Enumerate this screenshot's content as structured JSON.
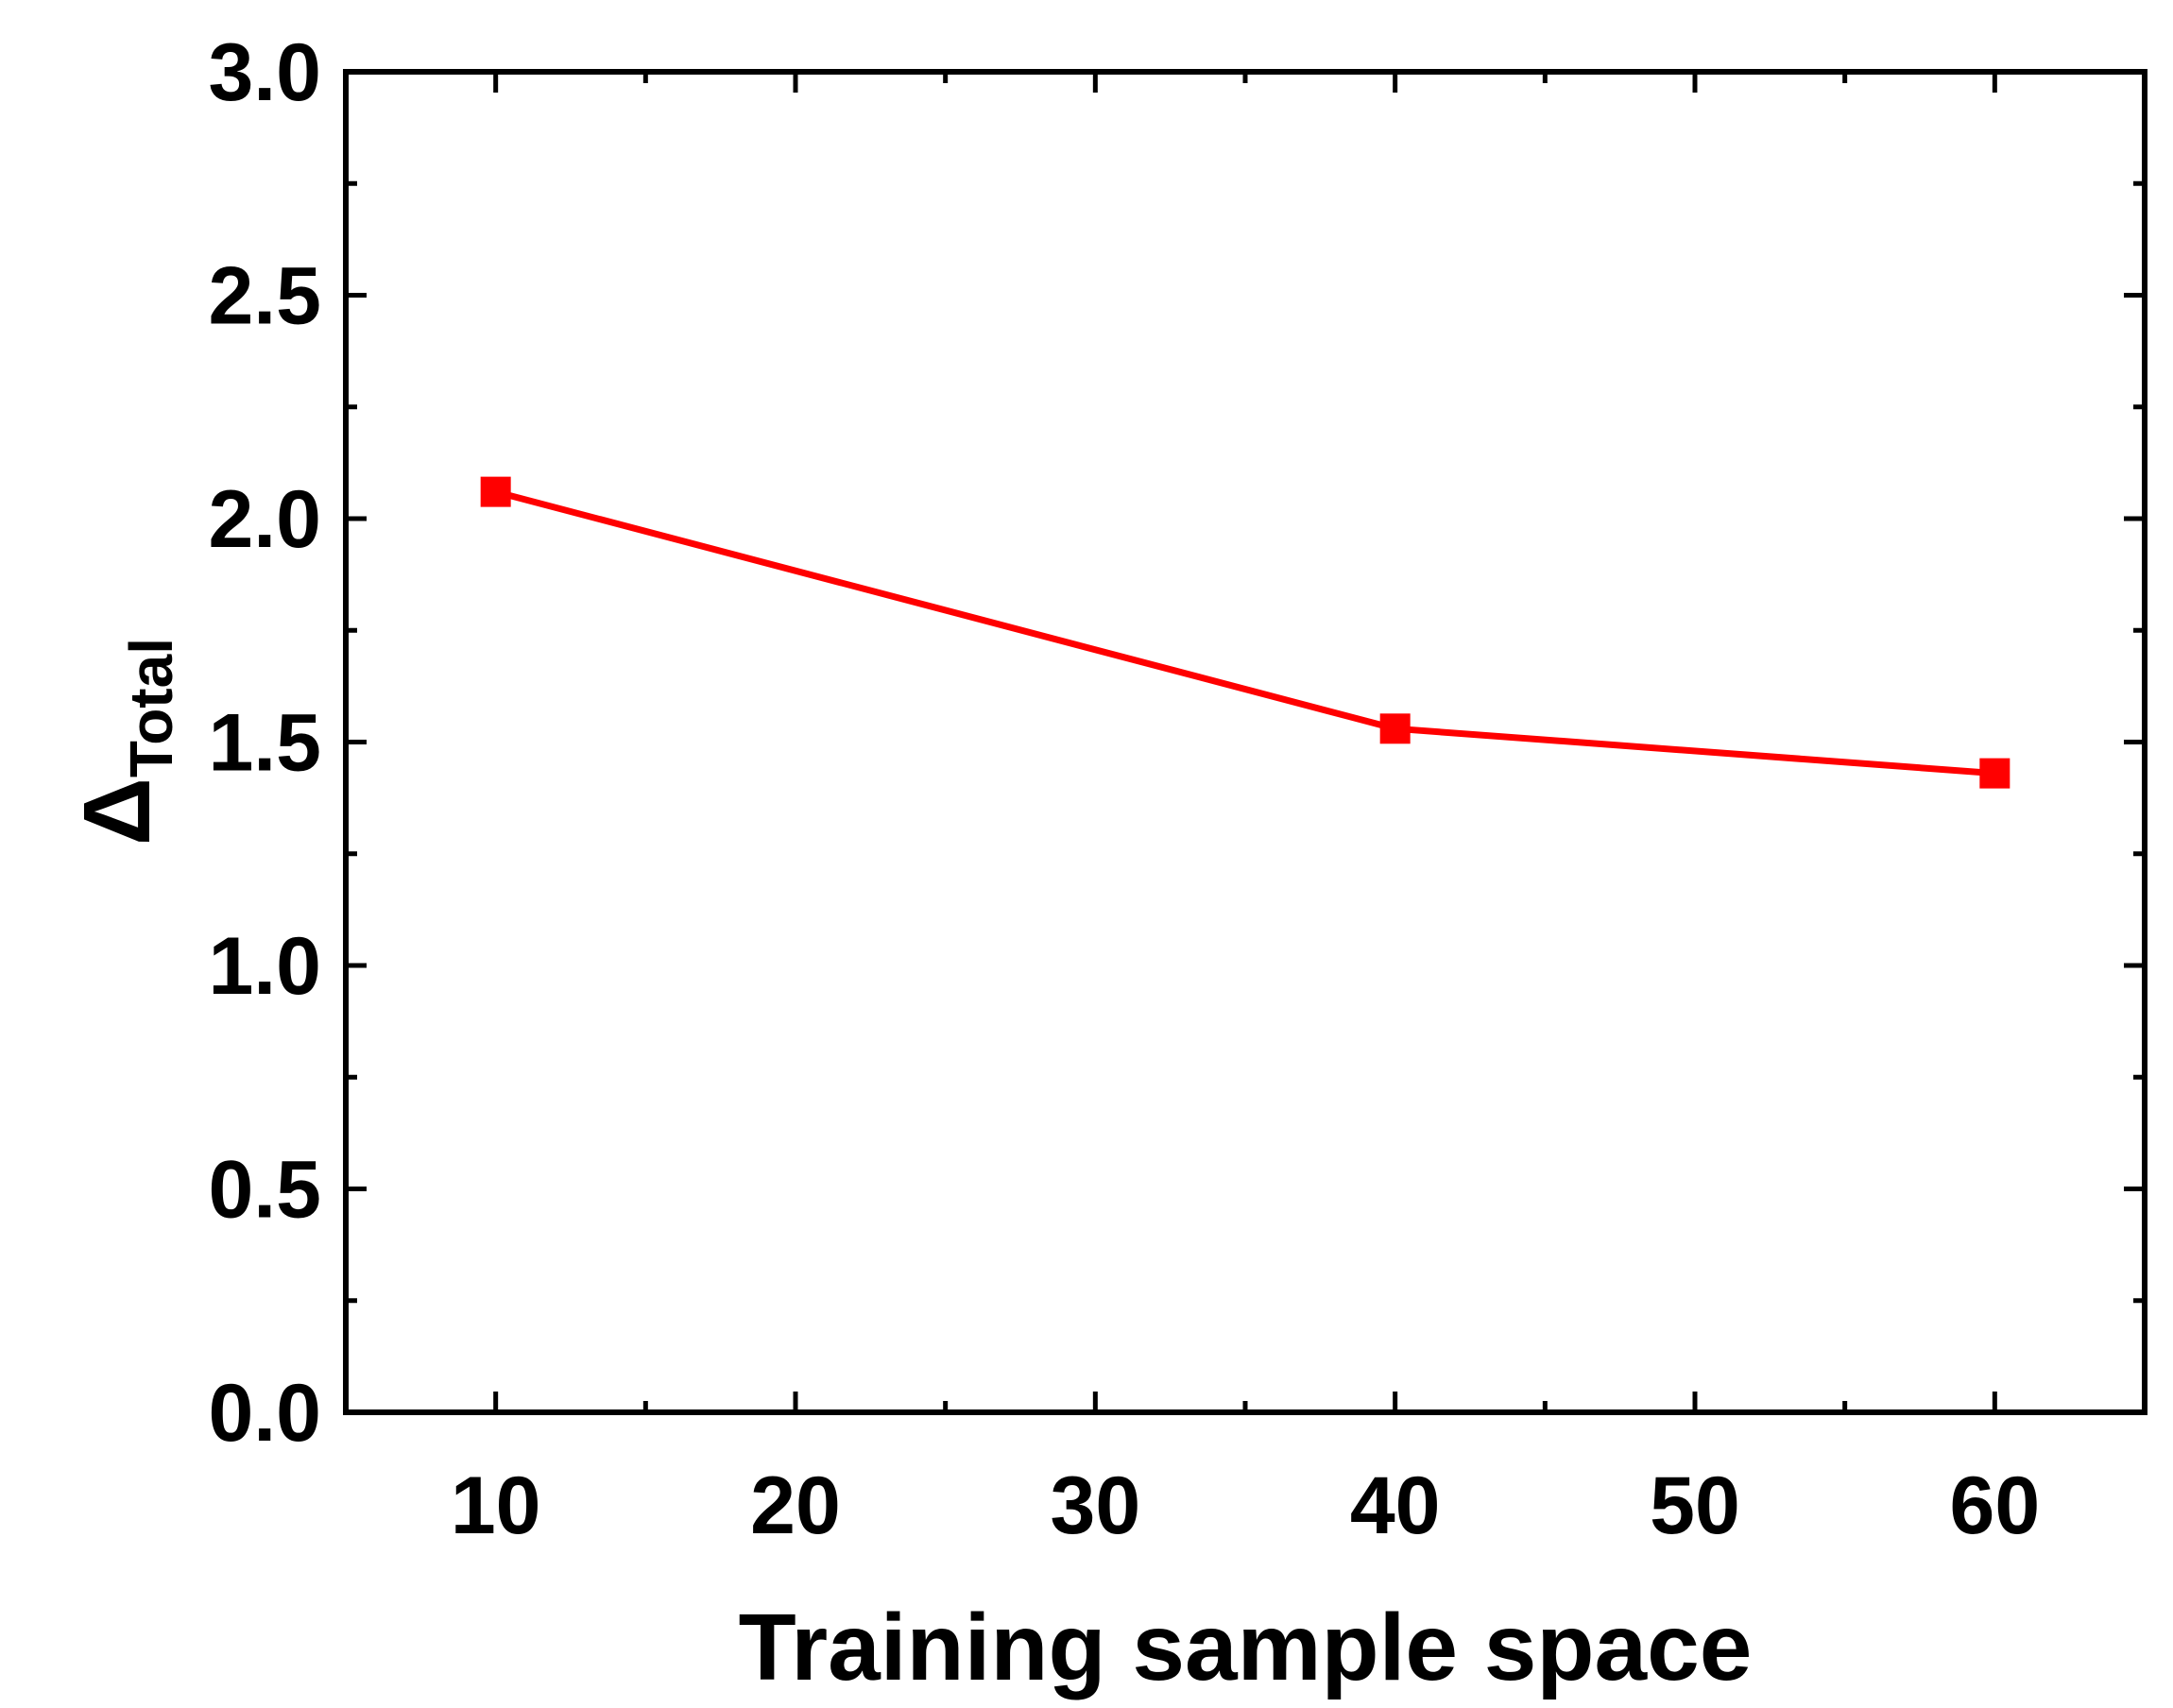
{
  "chart_data": {
    "type": "line",
    "xlabel": "Training sample space",
    "ylabel": {
      "symbol": "Δ",
      "subscript": "Total"
    },
    "x_ticks": [
      "10",
      "20",
      "30",
      "40",
      "50",
      "60"
    ],
    "y_ticks": [
      "0.0",
      "0.5",
      "1.0",
      "1.5",
      "2.0",
      "2.5",
      "3.0"
    ],
    "xlim": [
      5,
      65
    ],
    "ylim": [
      0,
      3
    ],
    "x_tick_values": [
      10,
      20,
      30,
      40,
      50,
      60
    ],
    "y_tick_values": [
      0,
      0.5,
      1.0,
      1.5,
      2.0,
      2.5,
      3.0
    ],
    "x_minor_step": 5,
    "y_minor_step": 0.25,
    "grid": false,
    "legend": "none",
    "series": [
      {
        "color": "#ff0000",
        "marker": "square",
        "x": [
          10,
          40,
          60
        ],
        "y": [
          2.06,
          1.53,
          1.43
        ]
      }
    ]
  }
}
